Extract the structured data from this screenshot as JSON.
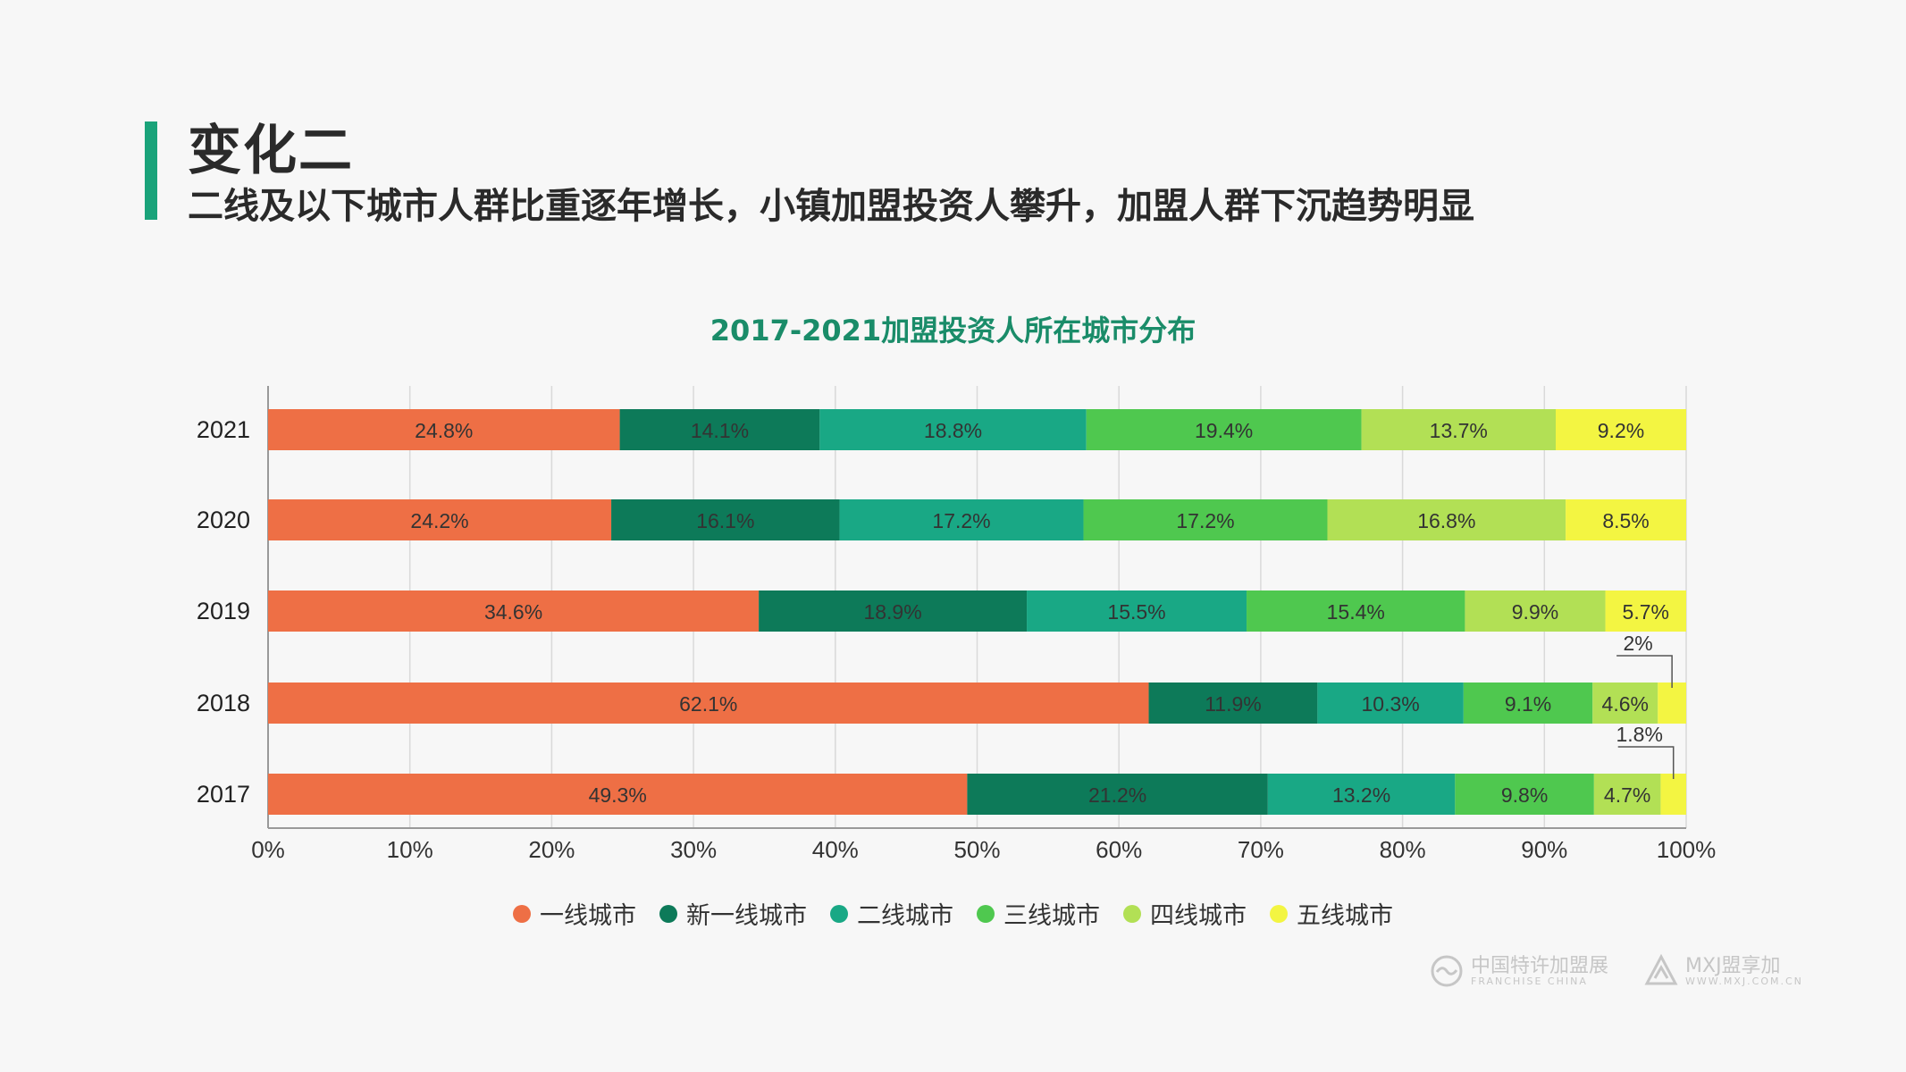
{
  "header": {
    "title": "变化二",
    "subtitle": "二线及以下城市人群比重逐年增长，小镇加盟投资人攀升，加盟人群下沉趋势明显"
  },
  "colors": {
    "accent": "#1aa37a",
    "series": [
      "#ee6f45",
      "#0d7a59",
      "#19a885",
      "#4fc84f",
      "#b2e055",
      "#f3f542"
    ]
  },
  "chart_data": {
    "type": "bar",
    "orientation": "horizontal",
    "stacked": true,
    "title": "2017-2021加盟投资人所在城市分布",
    "categories": [
      "2021",
      "2020",
      "2019",
      "2018",
      "2017"
    ],
    "series": [
      {
        "name": "一线城市",
        "values": [
          24.8,
          24.2,
          34.6,
          62.1,
          49.3
        ],
        "labels": [
          "24.8%",
          "24.2%",
          "34.6%",
          "62.1%",
          "49.3%"
        ]
      },
      {
        "name": "新一线城市",
        "values": [
          14.1,
          16.1,
          18.9,
          11.9,
          21.2
        ],
        "labels": [
          "14.1%",
          "16.1%",
          "18.9%",
          "11.9%",
          "21.2%"
        ]
      },
      {
        "name": "二线城市",
        "values": [
          18.8,
          17.2,
          15.5,
          10.3,
          13.2
        ],
        "labels": [
          "18.8%",
          "17.2%",
          "15.5%",
          "10.3%",
          "13.2%"
        ]
      },
      {
        "name": "三线城市",
        "values": [
          19.4,
          17.2,
          15.4,
          9.1,
          9.8
        ],
        "labels": [
          "19.4%",
          "17.2%",
          "15.4%",
          "9.1%",
          "9.8%"
        ]
      },
      {
        "name": "四线城市",
        "values": [
          13.7,
          16.8,
          9.9,
          4.6,
          4.7
        ],
        "labels": [
          "13.7%",
          "16.8%",
          "9.9%",
          "4.6%",
          "4.7%"
        ]
      },
      {
        "name": "五线城市",
        "values": [
          9.2,
          8.5,
          5.7,
          2.0,
          1.8
        ],
        "labels": [
          "9.2%",
          "8.5%",
          "5.7%",
          "2%",
          "1.8%"
        ]
      }
    ],
    "xlim": [
      0,
      100
    ],
    "xticks": [
      "0%",
      "10%",
      "20%",
      "30%",
      "40%",
      "50%",
      "60%",
      "70%",
      "80%",
      "90%",
      "100%"
    ],
    "grid": true,
    "legend_position": "bottom"
  },
  "logos": {
    "logo1_main": "中国特许加盟展",
    "logo1_sub": "FRANCHISE CHINA",
    "logo2_main": "MXJ盟享加",
    "logo2_sub": "WWW.MXJ.COM.CN"
  }
}
